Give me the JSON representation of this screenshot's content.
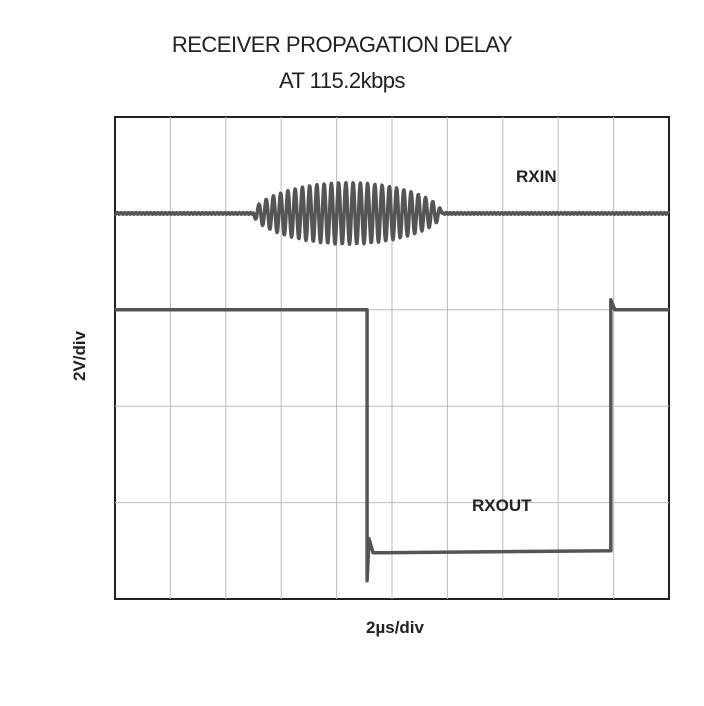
{
  "chart_data": {
    "type": "line",
    "title": "RECEIVER PROPAGATION DELAY",
    "subtitle": "AT 115.2kbps",
    "xlabel": "2µs/div",
    "ylabel": "2V/div",
    "grid": true,
    "x_divisions": 10,
    "y_divisions": 5,
    "xlim": [
      0,
      20
    ],
    "series": [
      {
        "name": "RXIN",
        "color": "#555555",
        "baseline_div_from_top": 1.0,
        "burst_start_us": 5.0,
        "burst_end_us": 11.8,
        "burst_cycles": 26,
        "burst_peak_amplitude_div": 0.32
      },
      {
        "name": "RXOUT",
        "color": "#555555",
        "high_div_from_top": 2.0,
        "low_div_from_top": 4.5,
        "fall_us": 9.1,
        "rise_us": 17.9
      }
    ]
  }
}
